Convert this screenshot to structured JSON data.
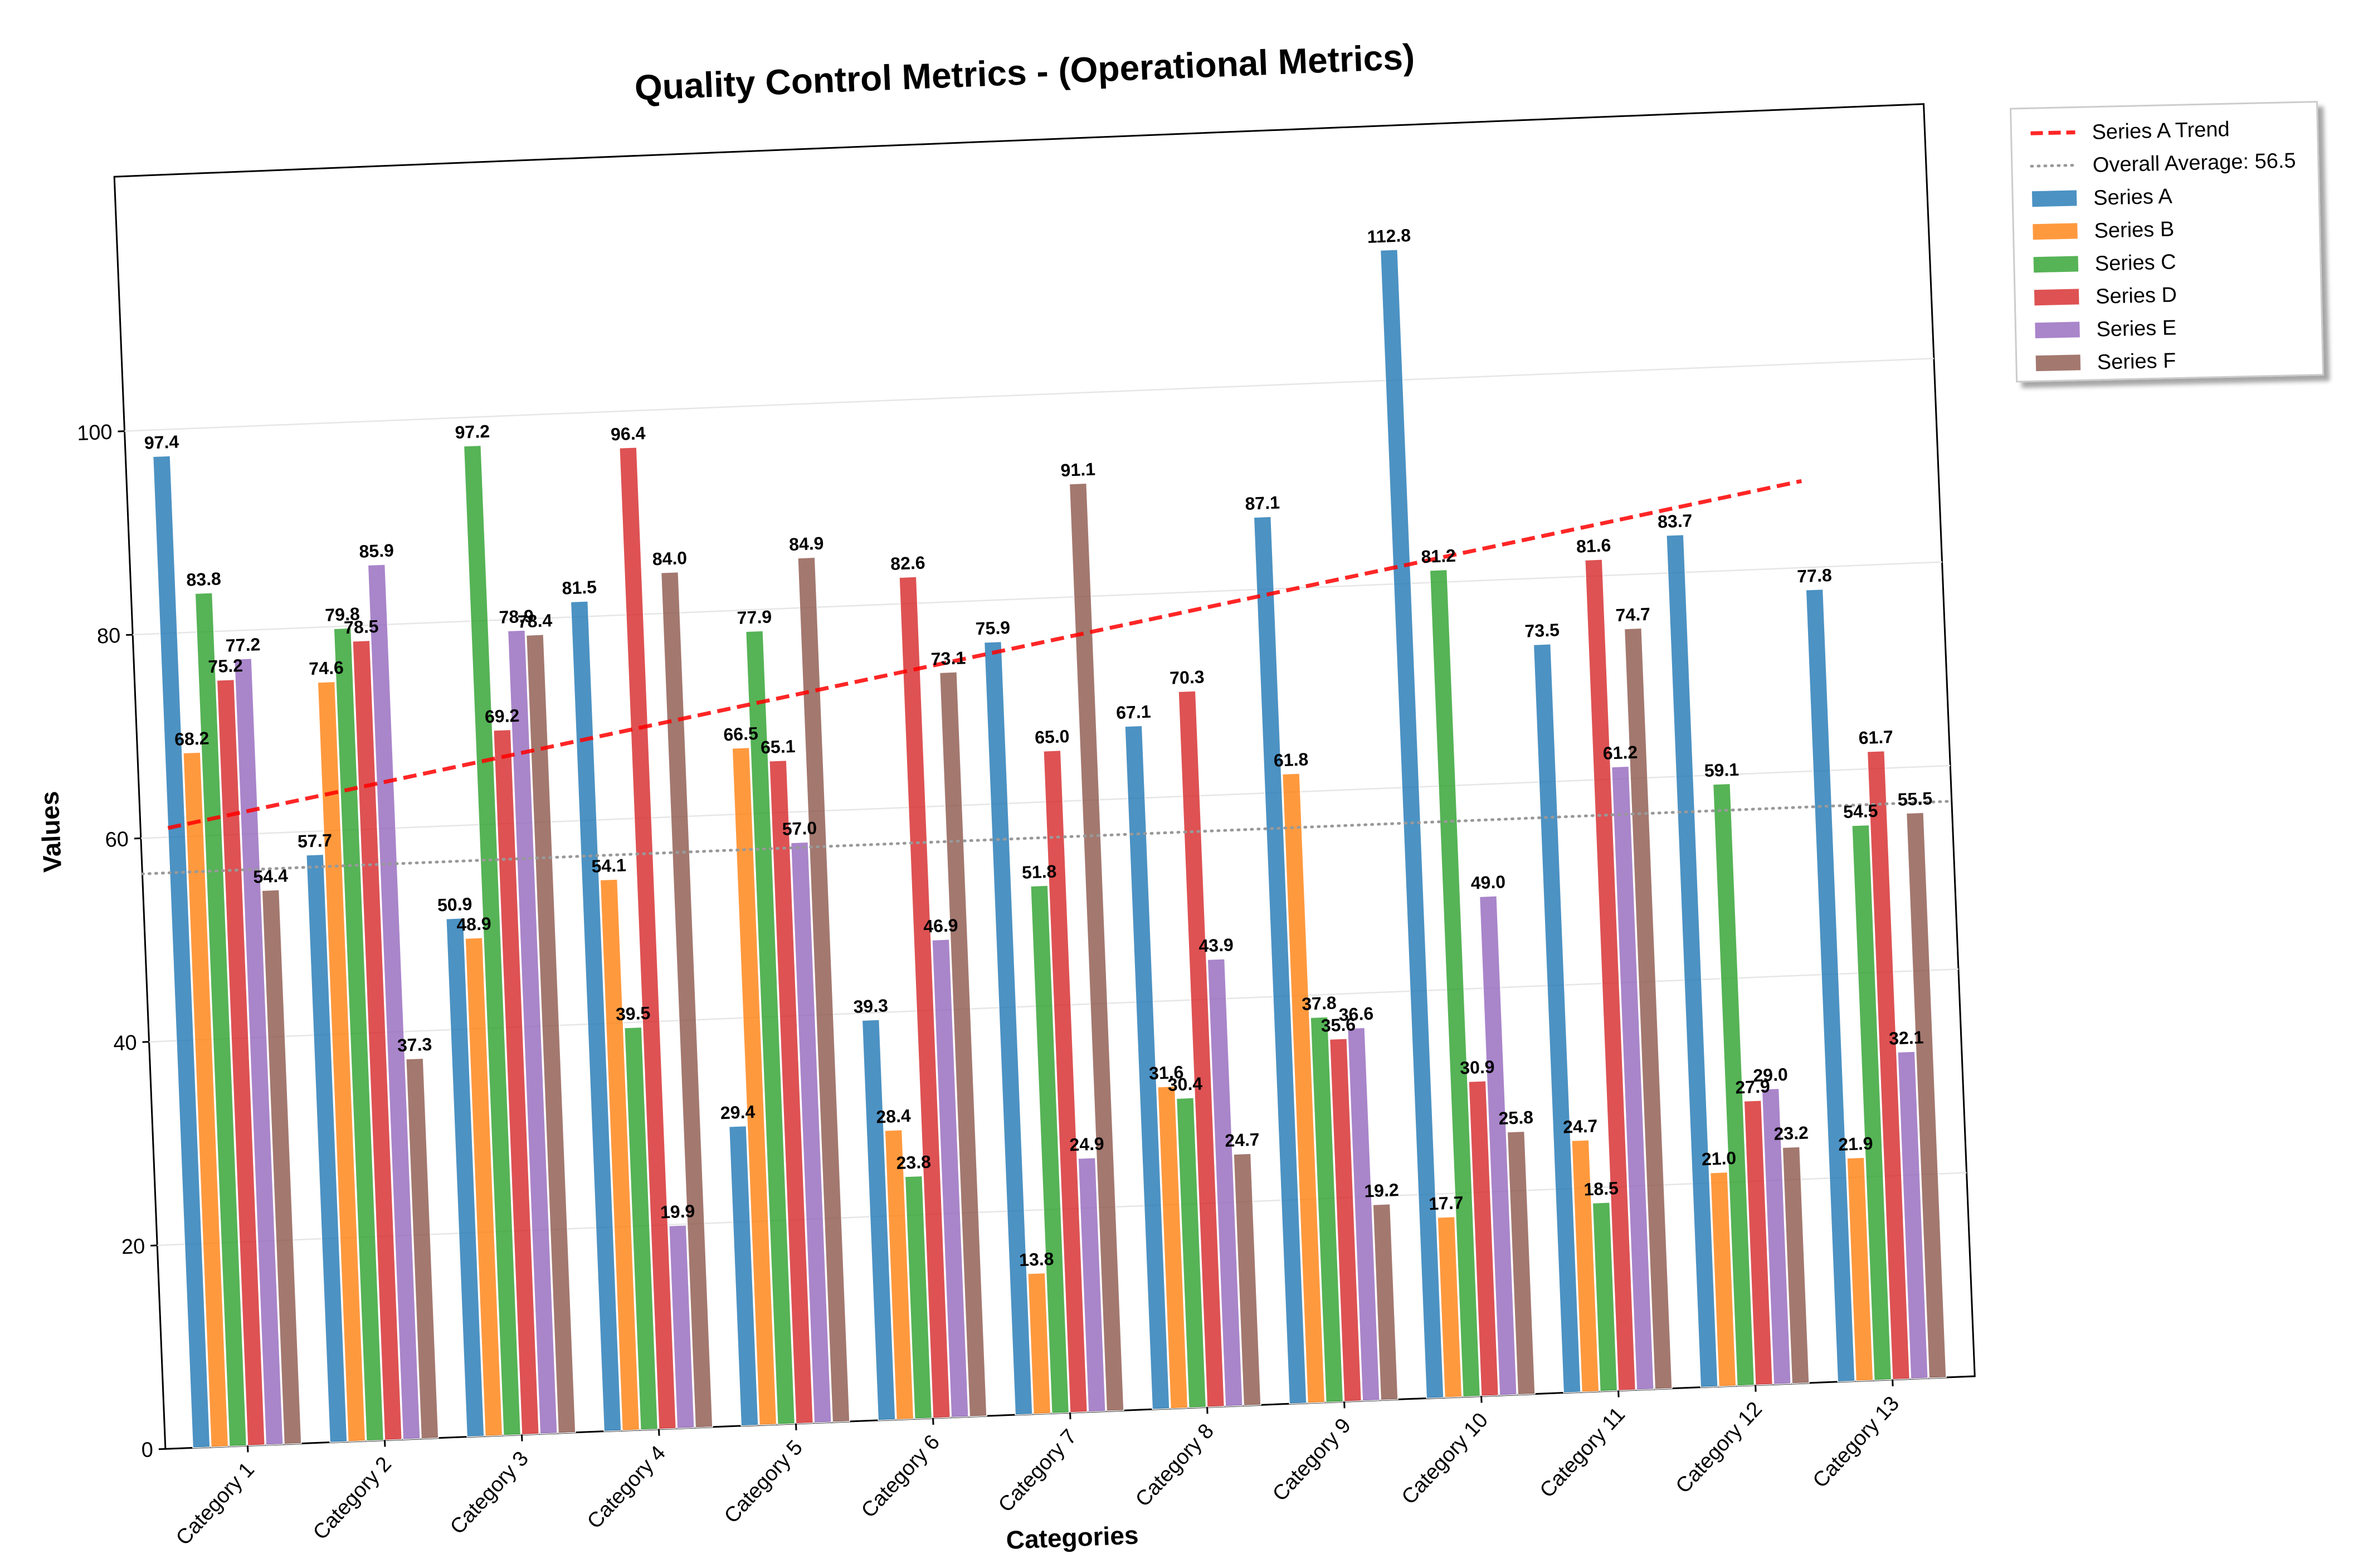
{
  "chart_data": {
    "type": "bar",
    "title": "Quality Control Metrics - (Operational Metrics)",
    "xlabel": "Categories",
    "ylabel": "Values",
    "ylim": [
      0,
      125
    ],
    "yticks": [
      0,
      20,
      40,
      60,
      80,
      100
    ],
    "grid": true,
    "legend_position": "outside top-right",
    "categories": [
      "Category 1",
      "Category 2",
      "Category 3",
      "Category 4",
      "Category 5",
      "Category 6",
      "Category 7",
      "Category 8",
      "Category 9",
      "Category 10",
      "Category 11",
      "Category 12",
      "Category 13"
    ],
    "series": [
      {
        "name": "Series A",
        "color": "#1f77b4",
        "values": [
          97.4,
          57.7,
          50.9,
          81.5,
          29.4,
          39.3,
          75.9,
          67.1,
          87.1,
          112.8,
          73.5,
          83.7,
          77.8
        ]
      },
      {
        "name": "Series B",
        "color": "#ff7f0e",
        "values": [
          68.2,
          74.6,
          48.9,
          54.1,
          66.5,
          28.4,
          13.8,
          31.6,
          61.8,
          17.7,
          24.7,
          21.0,
          21.9
        ]
      },
      {
        "name": "Series C",
        "color": "#2ca02c",
        "values": [
          83.8,
          79.8,
          97.2,
          39.5,
          77.9,
          23.8,
          51.8,
          30.4,
          37.8,
          81.2,
          18.5,
          59.1,
          54.5
        ]
      },
      {
        "name": "Series D",
        "color": "#d62728",
        "values": [
          75.2,
          78.5,
          69.2,
          96.4,
          65.1,
          82.6,
          65.0,
          70.3,
          35.6,
          30.9,
          81.6,
          27.9,
          61.7
        ]
      },
      {
        "name": "Series E",
        "color": "#9467bd",
        "values": [
          77.2,
          85.9,
          78.9,
          19.9,
          57.0,
          46.9,
          24.9,
          43.9,
          36.6,
          49.0,
          61.2,
          29.0,
          32.1
        ]
      },
      {
        "name": "Series F",
        "color": "#8c564b",
        "values": [
          54.4,
          37.3,
          78.4,
          84.0,
          84.9,
          73.1,
          91.1,
          24.7,
          19.2,
          25.8,
          74.7,
          23.2,
          55.5
        ]
      }
    ],
    "trend_line": {
      "name": "Series A Trend",
      "color": "#ff0000",
      "style": "dashed",
      "start": 60.9,
      "end": 88.5
    },
    "average_line": {
      "name": "Overall Average: 56.5",
      "color": "#999999",
      "style": "dotted",
      "value": 56.5
    }
  }
}
